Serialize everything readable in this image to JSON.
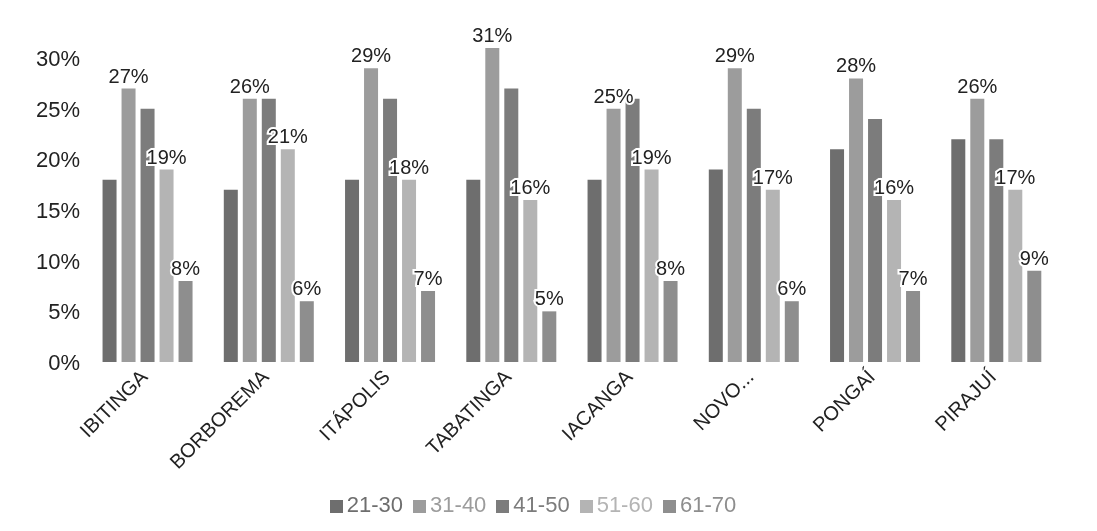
{
  "chart_data": {
    "type": "bar",
    "categories": [
      "IBITINGA",
      "BORBOREMA",
      "ITÁPOLIS",
      "TABATINGA",
      "IACANGA",
      "NOVO...",
      "PONGAÍ",
      "PIRAJUÍ"
    ],
    "series": [
      {
        "name": "21-30",
        "color": "#6e6e6e",
        "values": [
          18,
          17,
          18,
          18,
          18,
          19,
          21,
          22
        ]
      },
      {
        "name": "31-40",
        "color": "#9c9c9c",
        "values": [
          27,
          26,
          29,
          31,
          25,
          29,
          28,
          26
        ],
        "value_labels": [
          "27%",
          "26%",
          "29%",
          "31%",
          "25%",
          "29%",
          "28%",
          "26%"
        ]
      },
      {
        "name": "41-50",
        "color": "#7c7c7c",
        "values": [
          25,
          26,
          26,
          27,
          26,
          25,
          24,
          22
        ]
      },
      {
        "name": "51-60",
        "color": "#b4b4b4",
        "values": [
          19,
          21,
          18,
          16,
          19,
          17,
          16,
          17
        ],
        "value_labels": [
          "19%",
          "21%",
          "18%",
          "16%",
          "19%",
          "17%",
          "16%",
          "17%"
        ]
      },
      {
        "name": "61-70",
        "color": "#8e8e8e",
        "values": [
          8,
          6,
          7,
          5,
          8,
          6,
          7,
          9
        ],
        "value_labels": [
          "8%",
          "6%",
          "7%",
          "5%",
          "8%",
          "6%",
          "7%",
          "9%"
        ]
      }
    ],
    "ylim": [
      0,
      31
    ],
    "yticks": [
      {
        "value": 0,
        "label": "0%"
      },
      {
        "value": 5,
        "label": "5%"
      },
      {
        "value": 10,
        "label": "10%"
      },
      {
        "value": 15,
        "label": "15%"
      },
      {
        "value": 20,
        "label": "20%"
      },
      {
        "value": 25,
        "label": "25%"
      },
      {
        "value": 30,
        "label": "30%"
      }
    ],
    "grid": false,
    "legend": "bottom"
  }
}
